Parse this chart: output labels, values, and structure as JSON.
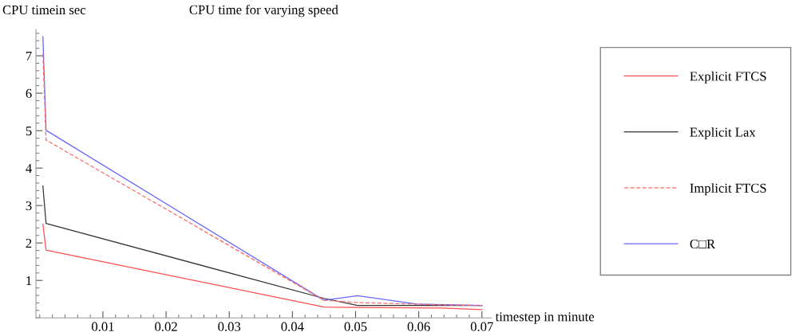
{
  "chart_data": {
    "type": "line",
    "title": "CPU time for varying speed",
    "xlabel": "timestep in minute",
    "ylabel": "CPU timein sec",
    "xlim": [
      -0.0006,
      0.0715
    ],
    "ylim": [
      0,
      7.7
    ],
    "xticks": [
      0.01,
      0.02,
      0.03,
      0.04,
      0.05,
      0.06,
      0.07
    ],
    "yticks": [
      1,
      2,
      3,
      4,
      5,
      6,
      7
    ],
    "grid": false,
    "legend": "right",
    "marker": "none",
    "series": [
      {
        "name": "Explicit FTCS",
        "color": "#ff4d4d",
        "line_style": "solid",
        "x": [
          0.0005,
          0.001,
          0.045,
          0.05,
          0.0636,
          0.07
        ],
        "values": [
          2.5,
          1.81,
          0.29,
          0.28,
          0.26,
          0.22
        ]
      },
      {
        "name": "Explicit Lax",
        "color": "#333333",
        "line_style": "solid",
        "x": [
          0.0005,
          0.001,
          0.045,
          0.0503,
          0.07
        ],
        "values": [
          3.52,
          2.52,
          0.52,
          0.33,
          0.33
        ]
      },
      {
        "name": "Implicit FTCS",
        "color": "#ff6666",
        "line_style": "dashed",
        "x": [
          0.0005,
          0.001,
          0.045,
          0.05,
          0.063,
          0.07
        ],
        "values": [
          7.05,
          4.75,
          0.47,
          0.41,
          0.35,
          0.33
        ]
      },
      {
        "name": "C□R",
        "color": "#6666ff",
        "line_style": "solid",
        "x": [
          0.0005,
          0.001,
          0.045,
          0.0503,
          0.0597,
          0.07
        ],
        "values": [
          7.51,
          5.01,
          0.47,
          0.59,
          0.37,
          0.33
        ]
      }
    ]
  }
}
